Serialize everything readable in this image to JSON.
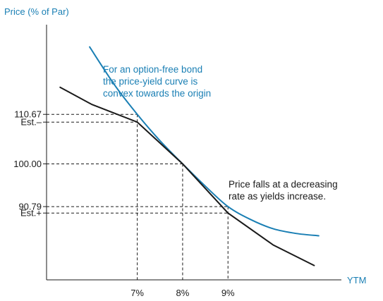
{
  "chart_data": {
    "type": "line",
    "ylabel": "Price (% of Par)",
    "xlabel": "YTM",
    "x_ticks": [
      {
        "label": "7%",
        "value": 7
      },
      {
        "label": "8%",
        "value": 8
      },
      {
        "label": "9%",
        "value": 9
      }
    ],
    "y_ticks": [
      {
        "label": "110.67",
        "value": 110.67
      },
      {
        "label": "Est.–",
        "value": 109.0
      },
      {
        "label": "100.00",
        "value": 100.0
      },
      {
        "label": "90.79",
        "value": 90.79
      },
      {
        "label": "Est.+",
        "value": 89.4
      }
    ],
    "xlim": [
      5.0,
      11.5
    ],
    "ylim": [
      75,
      130
    ],
    "grid": false,
    "series": [
      {
        "x": [
          5.95,
          6.5,
          7.0,
          7.5,
          8.0,
          8.5,
          9.0,
          9.5,
          10.0,
          10.5,
          11.0
        ],
        "y": [
          125.2,
          117.0,
          110.67,
          105.0,
          100.0,
          95.2,
          90.79,
          88.0,
          86.0,
          85.0,
          84.5
        ],
        "color": "#1a7fb4"
      },
      {
        "x": [
          5.3,
          6.0,
          7.0,
          8.0,
          9.0,
          10.0,
          10.9
        ],
        "y": [
          116.5,
          112.8,
          109.0,
          100.0,
          89.4,
          82.5,
          78.1
        ],
        "color": "#1a1a1a"
      }
    ],
    "annotations": [
      {
        "lines": [
          "For an option-free bond",
          "the price-yield curve is",
          "convex towards the origin"
        ],
        "color": "#1a7fb4"
      },
      {
        "lines": [
          "Price falls at a decreasing",
          "rate as yields increase."
        ],
        "color": "#1a1a1a"
      }
    ]
  }
}
